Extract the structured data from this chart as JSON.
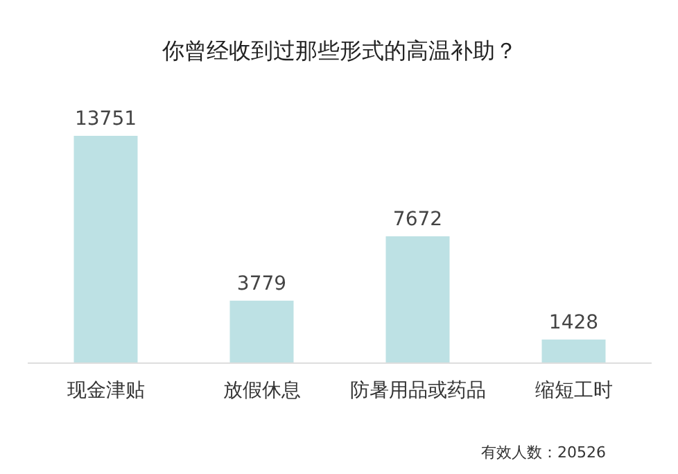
{
  "chart_data": {
    "type": "bar",
    "title": "你曾经收到过那些形式的高温补助？",
    "categories": [
      "现金津贴",
      "放假休息",
      "防暑用品或药品",
      "缩短工时"
    ],
    "values": [
      13751,
      3779,
      7672,
      1428
    ],
    "color": "#bde1e4",
    "data_labels": true,
    "annotations": [
      "有效人数：20526"
    ]
  }
}
